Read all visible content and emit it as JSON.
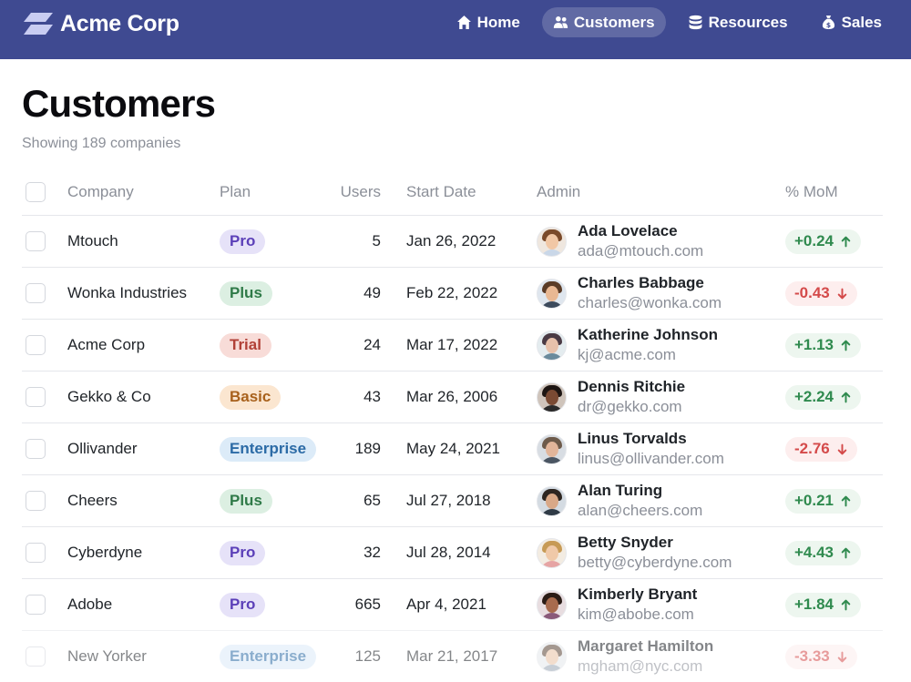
{
  "brand": {
    "name": "Acme Corp"
  },
  "nav": [
    {
      "label": "Home",
      "icon": "home-icon",
      "active": false
    },
    {
      "label": "Customers",
      "icon": "users-icon",
      "active": true
    },
    {
      "label": "Resources",
      "icon": "database-icon",
      "active": false
    },
    {
      "label": "Sales",
      "icon": "money-bag-icon",
      "active": false
    }
  ],
  "page": {
    "title": "Customers",
    "subtitle": "Showing 189 companies"
  },
  "table": {
    "columns": [
      "Company",
      "Plan",
      "Users",
      "Start Date",
      "Admin",
      "% MoM"
    ],
    "rows": [
      {
        "company": "Mtouch",
        "plan": "Pro",
        "users": "5",
        "start": "Jan 26, 2022",
        "admin_name": "Ada Lovelace",
        "admin_email": "ada@mtouch.com",
        "mom": "+0.24",
        "trend": "up"
      },
      {
        "company": "Wonka Industries",
        "plan": "Plus",
        "users": "49",
        "start": "Feb 22, 2022",
        "admin_name": "Charles Babbage",
        "admin_email": "charles@wonka.com",
        "mom": "-0.43",
        "trend": "down"
      },
      {
        "company": "Acme Corp",
        "plan": "Trial",
        "users": "24",
        "start": "Mar 17, 2022",
        "admin_name": "Katherine Johnson",
        "admin_email": "kj@acme.com",
        "mom": "+1.13",
        "trend": "up"
      },
      {
        "company": "Gekko & Co",
        "plan": "Basic",
        "users": "43",
        "start": "Mar 26, 2006",
        "admin_name": "Dennis Ritchie",
        "admin_email": "dr@gekko.com",
        "mom": "+2.24",
        "trend": "up"
      },
      {
        "company": "Ollivander",
        "plan": "Enterprise",
        "users": "189",
        "start": "May 24, 2021",
        "admin_name": "Linus Torvalds",
        "admin_email": "linus@ollivander.com",
        "mom": "-2.76",
        "trend": "down"
      },
      {
        "company": "Cheers",
        "plan": "Plus",
        "users": "65",
        "start": "Jul 27, 2018",
        "admin_name": "Alan Turing",
        "admin_email": "alan@cheers.com",
        "mom": "+0.21",
        "trend": "up"
      },
      {
        "company": "Cyberdyne",
        "plan": "Pro",
        "users": "32",
        "start": "Jul 28, 2014",
        "admin_name": "Betty Snyder",
        "admin_email": "betty@cyberdyne.com",
        "mom": "+4.43",
        "trend": "up"
      },
      {
        "company": "Adobe",
        "plan": "Pro",
        "users": "665",
        "start": "Apr 4, 2021",
        "admin_name": "Kimberly Bryant",
        "admin_email": "kim@abobe.com",
        "mom": "+1.84",
        "trend": "up"
      },
      {
        "company": "New Yorker",
        "plan": "Enterprise",
        "users": "125",
        "start": "Mar 21, 2017",
        "admin_name": "Margaret Hamilton",
        "admin_email": "mgham@nyc.com",
        "mom": "-3.33",
        "trend": "down"
      }
    ]
  },
  "colors": {
    "header_bg": "#3f4a91",
    "trend_up": "#2f8a4e",
    "trend_down": "#d44a4a"
  }
}
